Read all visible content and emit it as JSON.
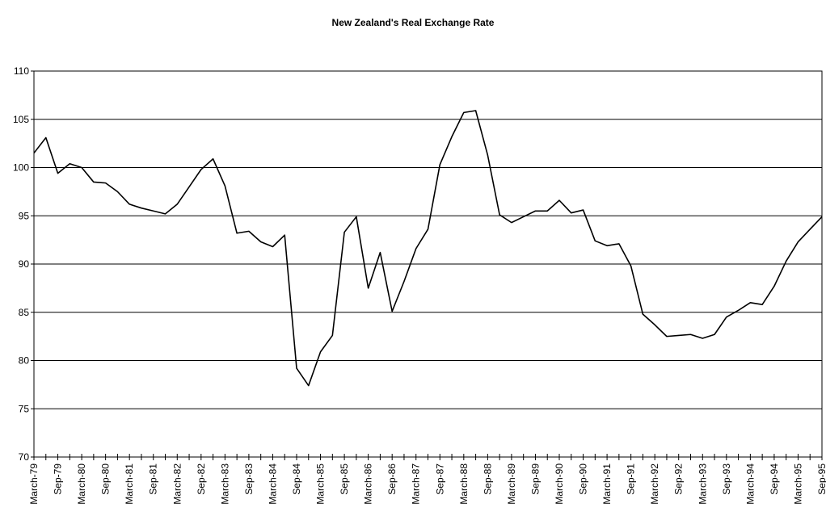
{
  "chart_data": {
    "type": "line",
    "title": "New Zealand's Real Exchange Rate",
    "categories": [
      "March-79",
      null,
      "Sep-79",
      null,
      "March-80",
      null,
      "Sep-80",
      null,
      "March-81",
      null,
      "Sep-81",
      null,
      "March-82",
      null,
      "Sep-82",
      null,
      "March-83",
      null,
      "Sep-83",
      null,
      "March-84",
      null,
      "Sep-84",
      null,
      "March-85",
      null,
      "Sep-85",
      null,
      "March-86",
      null,
      "Sep-86",
      null,
      "March-87",
      null,
      "Sep-87",
      null,
      "March-88",
      null,
      "Sep-88",
      null,
      "March-89",
      null,
      "Sep-89",
      null,
      "March-90",
      null,
      "Sep-90",
      null,
      "March-91",
      null,
      "Sep-91",
      null,
      "March-92",
      null,
      "Sep-92",
      null,
      "March-93",
      null,
      "Sep-93",
      null,
      "March-94",
      null,
      "Sep-94",
      null,
      "March-95",
      null,
      "Sep-95"
    ],
    "values": [
      101.5,
      103.1,
      99.4,
      100.4,
      100.0,
      98.5,
      98.4,
      97.5,
      96.2,
      95.8,
      95.5,
      95.2,
      96.2,
      98.0,
      99.8,
      100.9,
      98.1,
      93.2,
      93.4,
      92.3,
      91.8,
      93.0,
      79.2,
      77.4,
      80.9,
      82.6,
      93.3,
      94.9,
      87.5,
      91.2,
      85.1,
      88.2,
      91.6,
      93.6,
      100.3,
      103.2,
      105.7,
      105.9,
      101.3,
      95.1,
      94.3,
      94.9,
      95.5,
      95.5,
      96.6,
      95.3,
      95.6,
      92.4,
      91.9,
      92.1,
      89.8,
      84.8,
      83.7,
      82.5,
      82.6,
      82.7,
      82.3,
      82.7,
      84.5,
      85.2,
      86.0,
      85.8,
      87.7,
      90.3,
      92.3,
      93.6,
      94.9
    ],
    "color": "#000000",
    "ylim": [
      70,
      110
    ],
    "yticks": [
      70,
      75,
      80,
      85,
      90,
      95,
      100,
      105,
      110
    ],
    "grid": true
  }
}
